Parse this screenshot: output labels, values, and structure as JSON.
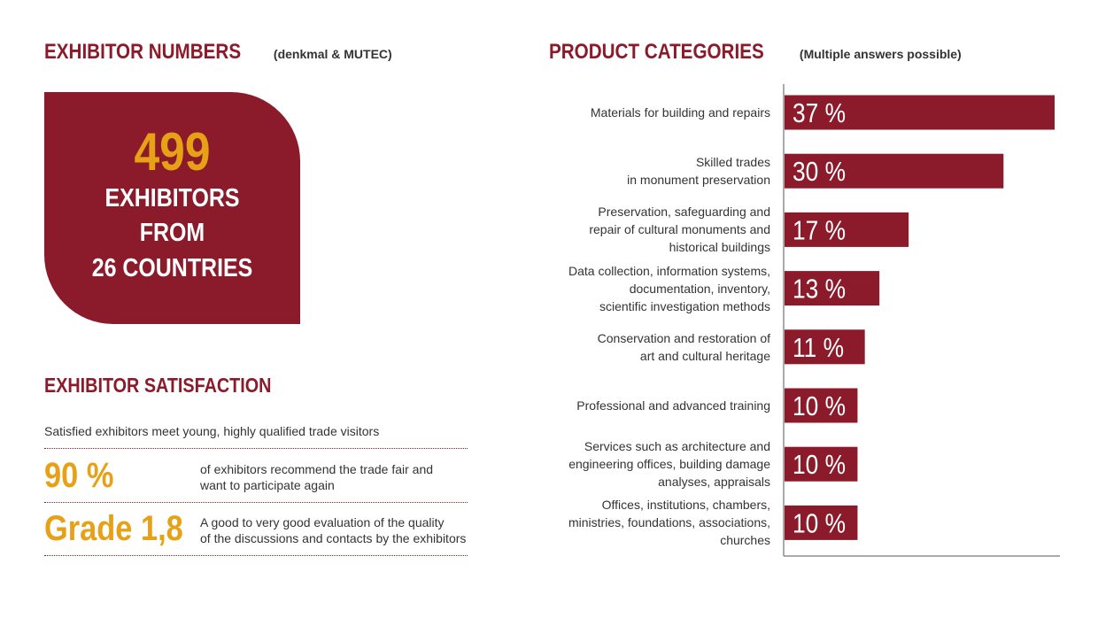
{
  "exhibitor_numbers": {
    "heading": "EXHIBITOR NUMBERS",
    "subheading": "(denkmal & MUTEC)",
    "count": "499",
    "line1": "EXHIBITORS",
    "line2": "FROM",
    "line3": "26 COUNTRIES"
  },
  "satisfaction": {
    "heading": "EXHIBITOR SATISFACTION",
    "intro": "Satisfied exhibitors meet young, highly qualified trade visitors",
    "stats": [
      {
        "value": "90 %",
        "desc1": "of exhibitors recommend the trade fair and",
        "desc2": "want to participate again"
      },
      {
        "value": "Grade 1,8",
        "desc1": "A good to very good evaluation of the quality",
        "desc2": "of the discussions and contacts by the exhibitors"
      }
    ]
  },
  "product_categories": {
    "heading": "PRODUCT CATEGORIES",
    "subheading": "(Multiple answers possible)"
  },
  "colors": {
    "brand_red": "#8b1a2a",
    "accent_gold": "#e6a117"
  },
  "chart_data": {
    "type": "bar",
    "orientation": "horizontal",
    "title": "PRODUCT CATEGORIES",
    "subtitle": "(Multiple answers possible)",
    "unit": "%",
    "categories": [
      [
        "Materials for building and repairs"
      ],
      [
        "Skilled trades",
        "in monument preservation"
      ],
      [
        "Preservation, safeguarding and",
        "repair of cultural monuments and",
        "historical buildings"
      ],
      [
        "Data collection, information systems,",
        "documentation, inventory,",
        "scientific investigation methods"
      ],
      [
        "Conservation and restoration of",
        "art and cultural heritage"
      ],
      [
        "Professional and advanced training"
      ],
      [
        "Services such as architecture and",
        "engineering offices, building damage",
        "analyses, appraisals"
      ],
      [
        "Offices, institutions, chambers,",
        "ministries, foundations, associations,",
        "churches"
      ]
    ],
    "values": [
      37,
      30,
      17,
      13,
      11,
      10,
      10,
      10
    ],
    "value_labels": [
      "37 %",
      "30 %",
      "17 %",
      "13 %",
      "11 %",
      "10 %",
      "10 %",
      "10 %"
    ],
    "xlim": [
      0,
      37
    ],
    "grid": false,
    "legend": "none"
  }
}
